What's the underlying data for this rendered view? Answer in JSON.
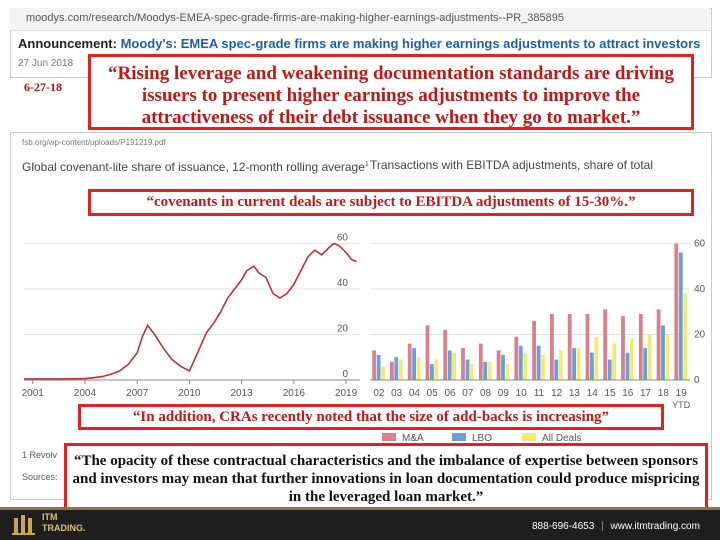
{
  "top_screenshot": {
    "url": "moodys.com/research/Moodys-EMEA-spec-grade-firms-are-making-higher-earnings-adjustments--PR_385895",
    "announcement_label": "Announcement:",
    "announcement_text": "Moody's: EMEA spec-grade firms are making higher earnings adjustments to attract investors",
    "date": "27 Jun 2018"
  },
  "date_label": "6-27-18",
  "quotes": {
    "q1": "“Rising leverage and weakening documentation standards are driving issuers to present higher earnings adjustments to improve the attractiveness of their debt issuance when they go to market.”",
    "q2": "“covenants in current deals are subject to EBITDA adjustments of 15-30%.”",
    "q3": "“In addition, CRAs recently noted that the size of add-backs is increasing”",
    "q4": "“The opacity of these contractual characteristics and the imbalance of expertise between sponsors and investors may mean that further innovations in loan documentation could produce mispricing in the leveraged loan market.”"
  },
  "chart_screenshot": {
    "url": "fsb.org/wp-content/uploads/P191219.pdf",
    "footnote_1": "1 Revolv",
    "footnote_sources": "Sources:"
  },
  "chart_data": [
    {
      "type": "line",
      "title": "Global covenant-lite share of issuance, 12-month rolling average",
      "title_superscript": "1",
      "x_ticks": [
        "2001",
        "2004",
        "2007",
        "2010",
        "2013",
        "2016",
        "2019"
      ],
      "y_ticks": [
        "0",
        "20",
        "40",
        "60"
      ],
      "ylim": [
        0,
        65
      ],
      "xlim": [
        2000.5,
        2019.8
      ],
      "color": "#c0303a",
      "series": [
        {
          "x": [
            2000.5,
            2001,
            2002,
            2003,
            2004,
            2004.5,
            2005,
            2005.5,
            2006,
            2006.5,
            2007,
            2007.3,
            2007.6,
            2008,
            2008.5,
            2009,
            2009.5,
            2010,
            2010.3,
            2010.7,
            2011,
            2011.4,
            2011.8,
            2012.2,
            2012.6,
            2013,
            2013.3,
            2013.7,
            2014,
            2014.4,
            2014.8,
            2015.2,
            2015.6,
            2016,
            2016.4,
            2016.8,
            2017.2,
            2017.6,
            2018,
            2018.3,
            2018.6,
            2019,
            2019.3,
            2019.6
          ],
          "y": [
            0.5,
            0.5,
            0.5,
            0.5,
            0.6,
            1,
            1.5,
            2.5,
            4,
            7,
            12,
            19,
            24,
            20,
            14,
            9,
            6,
            4,
            9,
            16,
            21,
            25,
            30,
            36,
            40,
            44,
            48,
            50,
            47,
            45,
            38,
            36,
            38,
            42,
            48,
            54,
            57,
            55,
            58,
            60,
            59,
            56,
            53,
            52
          ]
        }
      ]
    },
    {
      "type": "bar",
      "title": "Transactions with EBITDA adjustments, share of total",
      "categories": [
        "02",
        "03",
        "04",
        "05",
        "06",
        "07",
        "08",
        "09",
        "10",
        "11",
        "12",
        "13",
        "14",
        "15",
        "16",
        "17",
        "18",
        "19 YTD"
      ],
      "y_ticks": [
        "0",
        "20",
        "40",
        "60"
      ],
      "ylim": [
        0,
        65
      ],
      "series": [
        {
          "name": "M&A",
          "color": "#d9808c",
          "values": [
            13,
            8,
            16,
            24,
            22,
            14,
            16,
            13,
            19,
            26,
            29,
            29,
            29,
            31,
            28,
            29,
            31,
            60
          ]
        },
        {
          "name": "LBO",
          "color": "#6c9fd6",
          "values": [
            11,
            10,
            14,
            7,
            13,
            9,
            8,
            11,
            15,
            15,
            9,
            14,
            12,
            9,
            12,
            14,
            24,
            56
          ]
        },
        {
          "name": "All Deals",
          "color": "#f2ea72",
          "values": [
            6,
            9,
            10,
            9,
            12,
            7,
            8,
            7,
            12,
            11,
            13,
            14,
            19,
            16,
            18,
            20,
            20,
            38
          ]
        }
      ]
    }
  ],
  "footer": {
    "logo_text": "ITM",
    "logo_sub": "TRADING.",
    "phone": "888-696-4653",
    "separator": "|",
    "website": "www.itmtrading.com"
  }
}
